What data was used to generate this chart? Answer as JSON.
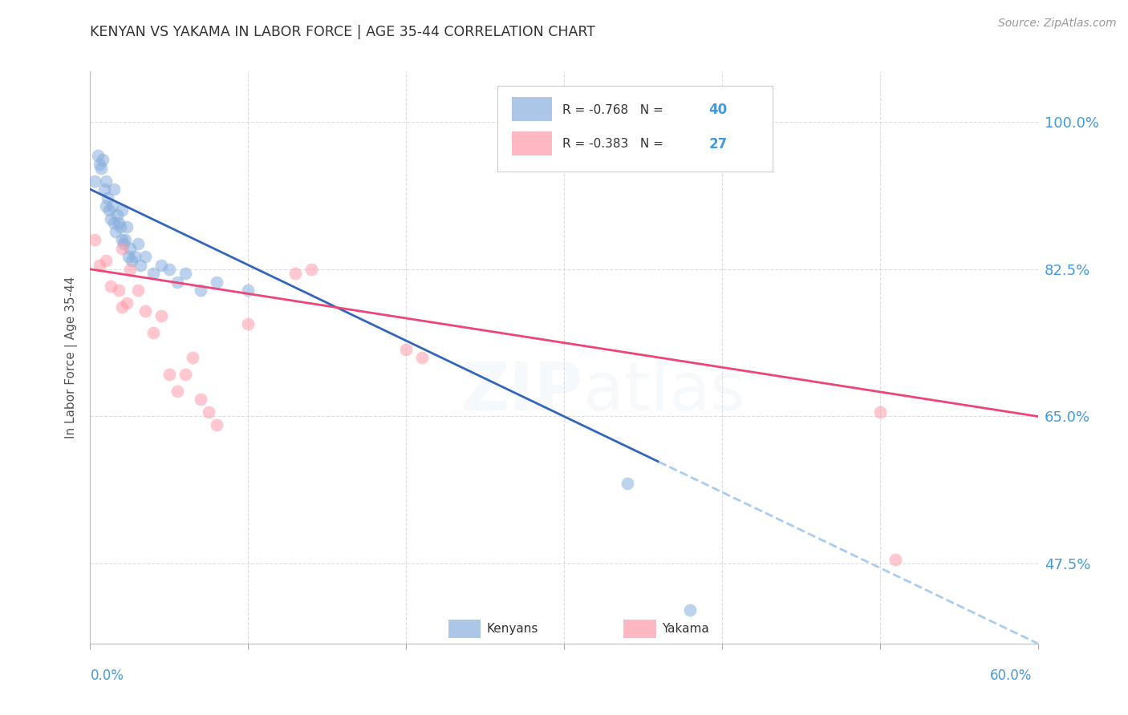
{
  "title": "KENYAN VS YAKAMA IN LABOR FORCE | AGE 35-44 CORRELATION CHART",
  "source": "Source: ZipAtlas.com",
  "xlabel_bottom_left": "0.0%",
  "xlabel_bottom_right": "60.0%",
  "ylabel": "In Labor Force | Age 35-44",
  "legend_label_kenyans": "Kenyans",
  "legend_label_yakama": "Yakama",
  "r_kenyans": -0.768,
  "n_kenyans": 40,
  "r_yakama": -0.383,
  "n_yakama": 27,
  "x_min": 0.0,
  "x_max": 60.0,
  "y_min": 38.0,
  "y_max": 106.0,
  "y_ticks": [
    47.5,
    65.0,
    82.5,
    100.0
  ],
  "x_ticks": [
    0.0,
    10.0,
    20.0,
    30.0,
    40.0,
    50.0,
    60.0
  ],
  "color_kenyans": "#88AEDD",
  "color_yakama": "#FF99AA",
  "color_kenyans_line": "#3366BB",
  "color_yakama_line": "#EE4477",
  "color_dashed": "#AACCEE",
  "background_color": "#FFFFFF",
  "watermark_color": "#C8D8E8",
  "title_color": "#333333",
  "source_color": "#999999",
  "tick_label_color": "#4499DD",
  "axis_label_color": "#555555",
  "grid_color": "#DDDDDD",
  "kenyans_x": [
    0.3,
    0.5,
    0.6,
    0.7,
    0.8,
    0.9,
    1.0,
    1.0,
    1.1,
    1.2,
    1.3,
    1.4,
    1.5,
    1.5,
    1.6,
    1.7,
    1.8,
    1.9,
    2.0,
    2.0,
    2.1,
    2.2,
    2.3,
    2.4,
    2.5,
    2.6,
    2.8,
    3.0,
    3.2,
    3.5,
    4.0,
    4.5,
    5.0,
    5.5,
    6.0,
    7.0,
    8.0,
    10.0,
    34.0,
    38.0
  ],
  "kenyans_y": [
    93.0,
    96.0,
    95.0,
    94.5,
    95.5,
    92.0,
    90.0,
    93.0,
    91.0,
    89.5,
    88.5,
    90.0,
    88.0,
    92.0,
    87.0,
    89.0,
    88.0,
    87.5,
    86.0,
    89.5,
    85.5,
    86.0,
    87.5,
    84.0,
    85.0,
    83.5,
    84.0,
    85.5,
    83.0,
    84.0,
    82.0,
    83.0,
    82.5,
    81.0,
    82.0,
    80.0,
    81.0,
    80.0,
    57.0,
    42.0
  ],
  "yakama_x": [
    0.3,
    0.6,
    1.0,
    1.3,
    1.8,
    2.0,
    2.0,
    2.3,
    2.5,
    3.0,
    3.5,
    4.0,
    4.5,
    5.0,
    5.5,
    6.0,
    6.5,
    7.0,
    7.5,
    8.0,
    10.0,
    13.0,
    14.0,
    20.0,
    21.0,
    50.0,
    51.0
  ],
  "yakama_y": [
    86.0,
    83.0,
    83.5,
    80.5,
    80.0,
    85.0,
    78.0,
    78.5,
    82.5,
    80.0,
    77.5,
    75.0,
    77.0,
    70.0,
    68.0,
    70.0,
    72.0,
    67.0,
    65.5,
    64.0,
    76.0,
    82.0,
    82.5,
    73.0,
    72.0,
    65.5,
    48.0
  ],
  "k_line_x0": 0.0,
  "k_line_y0": 92.0,
  "k_line_x1": 60.0,
  "k_line_y1": 38.0,
  "k_solid_end": 36.0,
  "y_line_x0": 0.0,
  "y_line_y0": 82.5,
  "y_line_x1": 60.0,
  "y_line_y1": 65.0
}
